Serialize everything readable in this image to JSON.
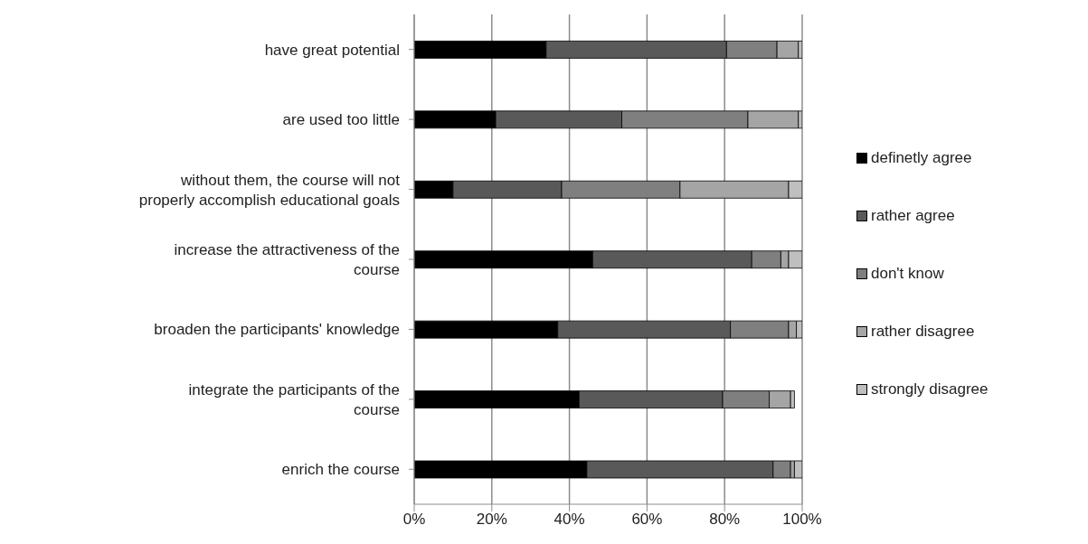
{
  "chart_data": {
    "type": "bar",
    "orientation": "horizontal",
    "stacked": true,
    "categories": [
      "have great potential",
      "are used too little",
      "without them, the course will not properly accomplish educational goals",
      "increase the attractiveness of the course",
      "broaden the participants' knowledge",
      "integrate the participants of the course",
      "enrich the course"
    ],
    "series": [
      {
        "name": "definetly agree",
        "color": "#000000",
        "values": [
          34,
          21,
          10,
          46,
          37,
          42.5,
          44.5
        ]
      },
      {
        "name": "rather agree",
        "color": "#595959",
        "values": [
          46.5,
          32.5,
          28,
          41,
          44.5,
          37,
          48
        ]
      },
      {
        "name": "don't know",
        "color": "#7f7f7f",
        "values": [
          13,
          32.5,
          30.5,
          7.5,
          15,
          12,
          4.5
        ]
      },
      {
        "name": "rather disagree",
        "color": "#a5a5a5",
        "values": [
          5.5,
          13,
          28,
          2,
          2,
          5.5,
          1
        ]
      },
      {
        "name": "strongly disagree",
        "color": "#bfbfbf",
        "values": [
          1,
          1,
          3.5,
          3.5,
          1.5,
          1,
          2
        ]
      }
    ],
    "xlim": [
      0,
      100
    ],
    "xticks": [
      {
        "value": 0,
        "label": "0%"
      },
      {
        "value": 20,
        "label": "20%"
      },
      {
        "value": 40,
        "label": "40%"
      },
      {
        "value": 60,
        "label": "60%"
      },
      {
        "value": 80,
        "label": "80%"
      },
      {
        "value": 100,
        "label": "100%"
      }
    ],
    "grid": "x",
    "legend": "right"
  }
}
